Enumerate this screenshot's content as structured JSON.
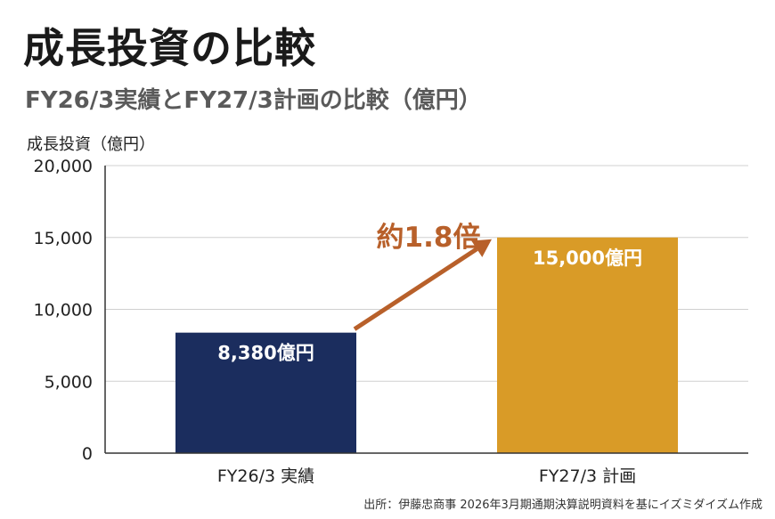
{
  "title": "成長投資の比較",
  "subtitle": "FY26/3実績とFY27/3計画の比較（億円）",
  "source": "出所：伊藤忠商事 2026年3月期通期決算説明資料を基にイズミダイズム作成",
  "chart_data": {
    "type": "bar",
    "title": "成長投資の比較",
    "subtitle": "FY26/3実績とFY27/3計画の比較（億円）",
    "ylabel": "成長投資（億円）",
    "xlabel": "",
    "categories": [
      "FY26/3 実績",
      "FY27/3 計画"
    ],
    "values": [
      8380,
      15000
    ],
    "data_labels": [
      "8,380億円",
      "15,000億円"
    ],
    "ylim": [
      0,
      20000
    ],
    "yticks": [
      0,
      5000,
      10000,
      15000,
      20000
    ],
    "ytick_labels": [
      "0",
      "5,000",
      "10,000",
      "15,000",
      "20,000"
    ],
    "grid": true,
    "annotation": "約1.8倍",
    "colors": {
      "bars": [
        "#1b2d5e",
        "#d99b27"
      ],
      "annotation": "#b8602a",
      "grid": "#d0d0d0",
      "axis": "#333333"
    }
  }
}
